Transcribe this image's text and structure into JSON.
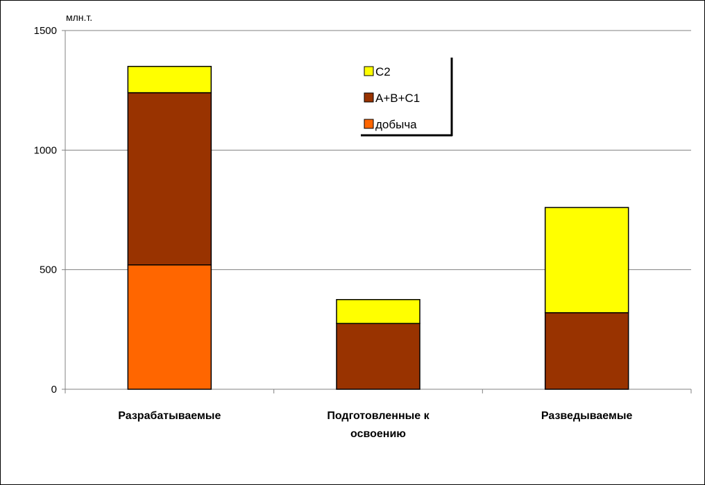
{
  "chart_data": {
    "type": "bar",
    "stacked": true,
    "categories": [
      [
        "Разрабатываемые"
      ],
      [
        "Подготовленные к",
        "освоению"
      ],
      [
        "Разведываемые"
      ]
    ],
    "series": [
      {
        "name": "добыча",
        "values": [
          520,
          0,
          0
        ],
        "color": "#ff6600"
      },
      {
        "name": "A+B+C1",
        "values": [
          720,
          275,
          320
        ],
        "color": "#993300"
      },
      {
        "name": "C2",
        "values": [
          110,
          100,
          440
        ],
        "color": "#ffff00"
      }
    ],
    "legend_order": [
      "C2",
      "A+B+C1",
      "добыча"
    ],
    "legend_placement": "top-center",
    "ylabel": "млн.т.",
    "ylim": [
      0,
      1500
    ],
    "yticks": [
      0,
      500,
      1000,
      1500
    ],
    "grid": true,
    "colors": {
      "bar_outline": "#000000",
      "gridline": "#808080",
      "axis": "#808080"
    }
  }
}
